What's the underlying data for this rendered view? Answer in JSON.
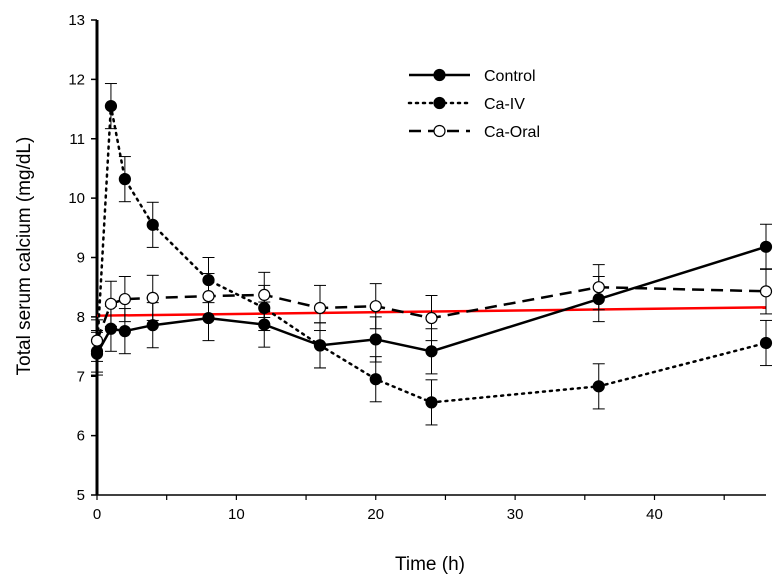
{
  "chart_data": {
    "type": "line",
    "xlabel": "Time (h)",
    "ylabel": "Total serum calcium (mg/dL)",
    "xlim": [
      0,
      48
    ],
    "ylim": [
      5,
      13
    ],
    "x_ticks": [
      0,
      10,
      20,
      30,
      40
    ],
    "y_ticks": [
      5,
      6,
      7,
      8,
      9,
      10,
      11,
      12,
      13
    ],
    "grid": false,
    "legend_position": "top-right",
    "series": [
      {
        "name": "Control",
        "line_style": "solid",
        "marker": "filled-circle",
        "color": "#000000",
        "x": [
          0,
          1,
          2,
          4,
          8,
          12,
          16,
          20,
          24,
          36,
          48
        ],
        "y": [
          7.38,
          7.8,
          7.76,
          7.86,
          7.98,
          7.87,
          7.52,
          7.62,
          7.42,
          8.3,
          9.18
        ],
        "err": [
          0.36,
          0.38,
          0.38,
          0.38,
          0.38,
          0.38,
          0.38,
          0.38,
          0.38,
          0.38,
          0.38
        ]
      },
      {
        "name": "Ca-IV",
        "line_style": "dotted",
        "marker": "filled-circle",
        "color": "#000000",
        "x": [
          0,
          1,
          2,
          4,
          8,
          12,
          16,
          20,
          24,
          36,
          48
        ],
        "y": [
          7.42,
          11.55,
          10.32,
          9.55,
          8.62,
          8.15,
          7.52,
          6.95,
          6.56,
          6.83,
          7.56
        ],
        "err": [
          0.35,
          0.38,
          0.38,
          0.38,
          0.38,
          0.38,
          0.38,
          0.38,
          0.38,
          0.38,
          0.38
        ]
      },
      {
        "name": "Ca-Oral",
        "line_style": "dashed",
        "marker": "open-circle",
        "color": "#000000",
        "x": [
          0,
          1,
          2,
          4,
          8,
          12,
          16,
          20,
          24,
          36,
          48
        ],
        "y": [
          7.6,
          8.22,
          8.3,
          8.32,
          8.35,
          8.37,
          8.15,
          8.18,
          7.98,
          8.5,
          8.43
        ],
        "err": [
          0.35,
          0.38,
          0.38,
          0.38,
          0.38,
          0.38,
          0.38,
          0.38,
          0.38,
          0.38,
          0.38
        ]
      }
    ],
    "reference_line": {
      "color": "#ff0000",
      "x": [
        0,
        48
      ],
      "y": [
        8.02,
        8.16
      ]
    }
  }
}
